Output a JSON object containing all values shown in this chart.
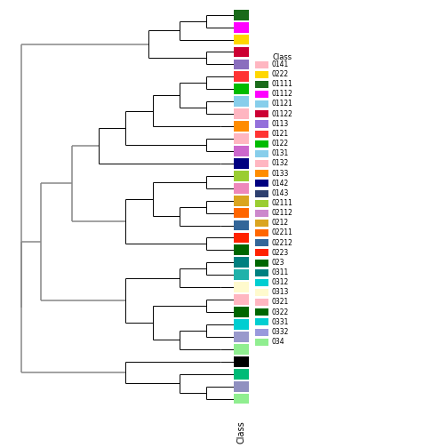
{
  "figsize": [
    5.04,
    5.04
  ],
  "dpi": 100,
  "background": "#FFFFFF",
  "leaf_colors": [
    "#1A6B1A",
    "#FF00FF",
    "#FFD700",
    "#CC0033",
    "#8B6FBE",
    "#FF3333",
    "#00BB00",
    "#87CEEB",
    "#FFB6C1",
    "#FF8C00",
    "#FFB6C1",
    "#CC66CC",
    "#000080",
    "#9ACD32",
    "#CC88CC",
    "#DAA520",
    "#FF6600",
    "#336699",
    "#FF2200",
    "#006600",
    "#008080",
    "#00CED1",
    "#FFFACD",
    "#FFB6C1",
    "#006600",
    "#00CED1",
    "#9999DD",
    "#90EE90",
    "#000000",
    "#00BB77",
    "#9090C0",
    "#90EE90"
  ],
  "legend_classes": [
    {
      "label": "0141",
      "color": "#FFB6C1"
    },
    {
      "label": "0222",
      "color": "#FFD700"
    },
    {
      "label": "01111",
      "color": "#1A6B1A"
    },
    {
      "label": "01112",
      "color": "#FF00FF"
    },
    {
      "label": "01121",
      "color": "#87CEEB"
    },
    {
      "label": "01122",
      "color": "#CC0033"
    },
    {
      "label": "0113",
      "color": "#9370DB"
    },
    {
      "label": "0121",
      "color": "#FF3333"
    },
    {
      "label": "0122",
      "color": "#00BB00"
    },
    {
      "label": "0131",
      "color": "#87CEEB"
    },
    {
      "label": "0132",
      "color": "#FFB6C1"
    },
    {
      "label": "0133",
      "color": "#FF8C00"
    },
    {
      "label": "0142",
      "color": "#000080"
    },
    {
      "label": "0143",
      "color": "#2D3F6F"
    },
    {
      "label": "02111",
      "color": "#9ACD32"
    },
    {
      "label": "02112",
      "color": "#CC88CC"
    },
    {
      "label": "0212",
      "color": "#DAA520"
    },
    {
      "label": "02211",
      "color": "#FF6600"
    },
    {
      "label": "02212",
      "color": "#336699"
    },
    {
      "label": "0223",
      "color": "#FF2200"
    },
    {
      "label": "023",
      "color": "#006600"
    },
    {
      "label": "0311",
      "color": "#008080"
    },
    {
      "label": "0312",
      "color": "#00CED1"
    },
    {
      "label": "0313",
      "color": "#FFFACD"
    },
    {
      "label": "0321",
      "color": "#FFB6C1"
    },
    {
      "label": "0322",
      "color": "#006600"
    },
    {
      "label": "0331",
      "color": "#00CED1"
    },
    {
      "label": "0332",
      "color": "#9999DD"
    },
    {
      "label": "034",
      "color": "#90EE90"
    }
  ],
  "xlabel": "Class"
}
